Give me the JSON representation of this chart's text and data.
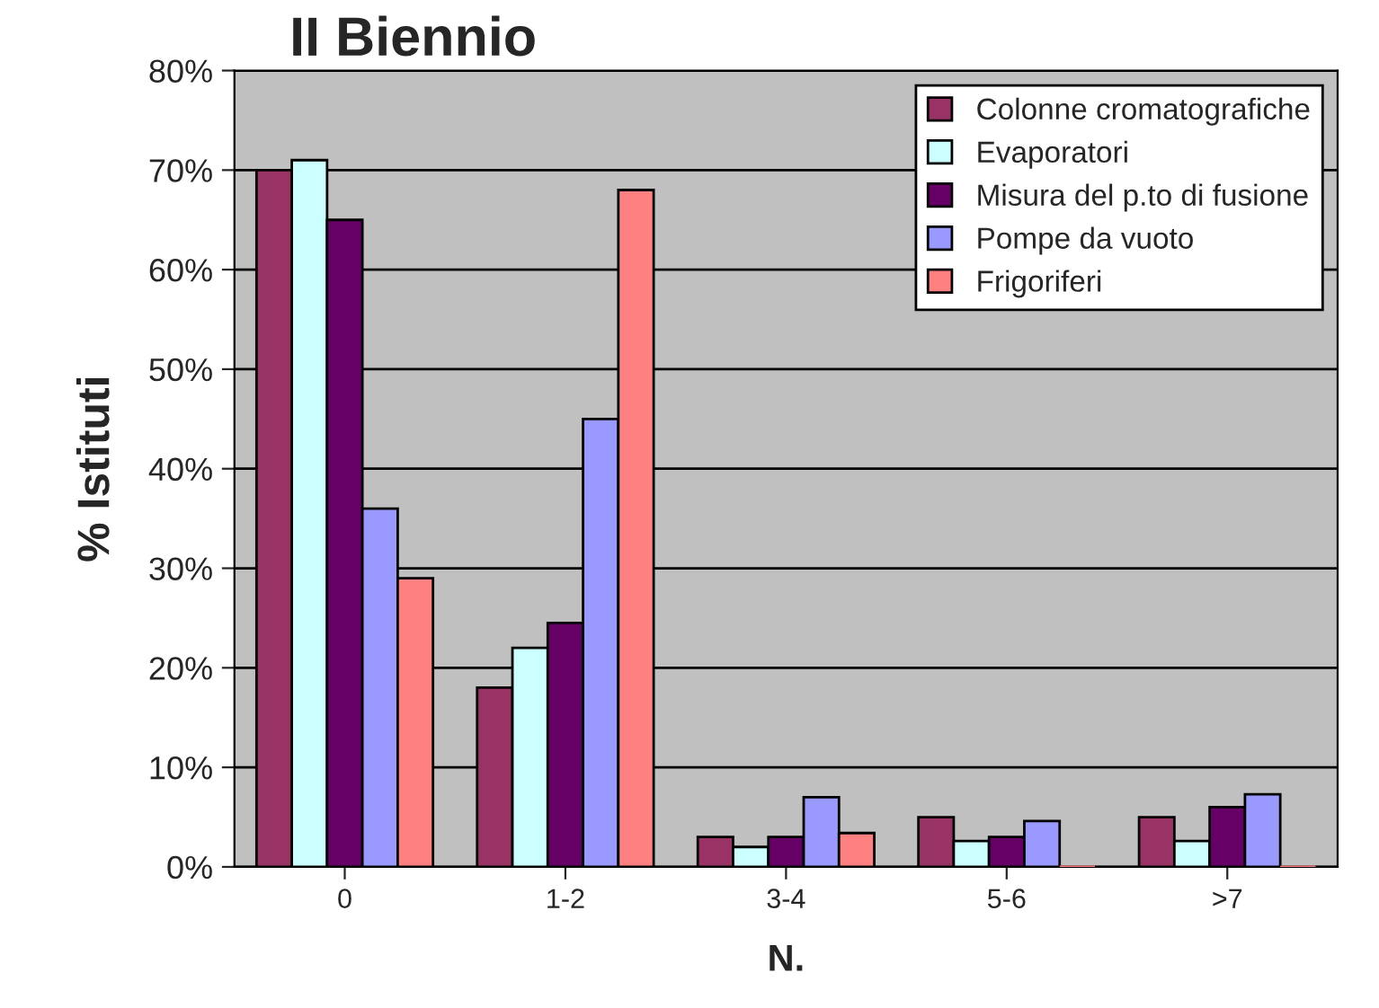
{
  "chart_data": {
    "type": "bar",
    "title": "II Biennio",
    "xlabel": "N.",
    "ylabel": "% Istituti",
    "categories": [
      "0",
      "1-2",
      "3-4",
      "5-6",
      ">7"
    ],
    "series": [
      {
        "name": "Colonne cromatografiche",
        "color": "#993366",
        "values": [
          70,
          18,
          3,
          5,
          5
        ]
      },
      {
        "name": "Evaporatori",
        "color": "#ccffff",
        "values": [
          71,
          22,
          2,
          2.6,
          2.6
        ]
      },
      {
        "name": "Misura del p.to di fusione",
        "color": "#660066",
        "values": [
          65,
          24.5,
          3,
          3,
          6
        ]
      },
      {
        "name": "Pompe da vuoto",
        "color": "#9999ff",
        "values": [
          36,
          45,
          7,
          4.6,
          7.3
        ]
      },
      {
        "name": "Frigoriferi",
        "color": "#ff8080",
        "values": [
          29,
          68,
          3.4,
          0,
          0
        ]
      }
    ],
    "ylim": [
      0,
      80
    ],
    "yticks": [
      {
        "value": 0,
        "label": "0%"
      },
      {
        "value": 10,
        "label": "10%"
      },
      {
        "value": 20,
        "label": "20%"
      },
      {
        "value": 30,
        "label": "30%"
      },
      {
        "value": 40,
        "label": "40%"
      },
      {
        "value": 50,
        "label": "50%"
      },
      {
        "value": 60,
        "label": "60%"
      },
      {
        "value": 70,
        "label": "70%"
      },
      {
        "value": 80,
        "label": "80%"
      }
    ],
    "grid": "y",
    "legend": "top right"
  }
}
